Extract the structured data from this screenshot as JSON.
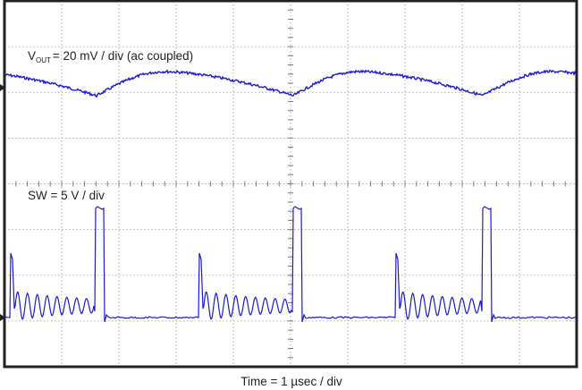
{
  "scope": {
    "vout_label": {
      "symbol": "V",
      "subscript": "OUT",
      "text": "= 20 mV / div (ac coupled)"
    },
    "sw_label": "SW = 5 V / div",
    "time_label": "Time = 1 µsec / div"
  }
}
